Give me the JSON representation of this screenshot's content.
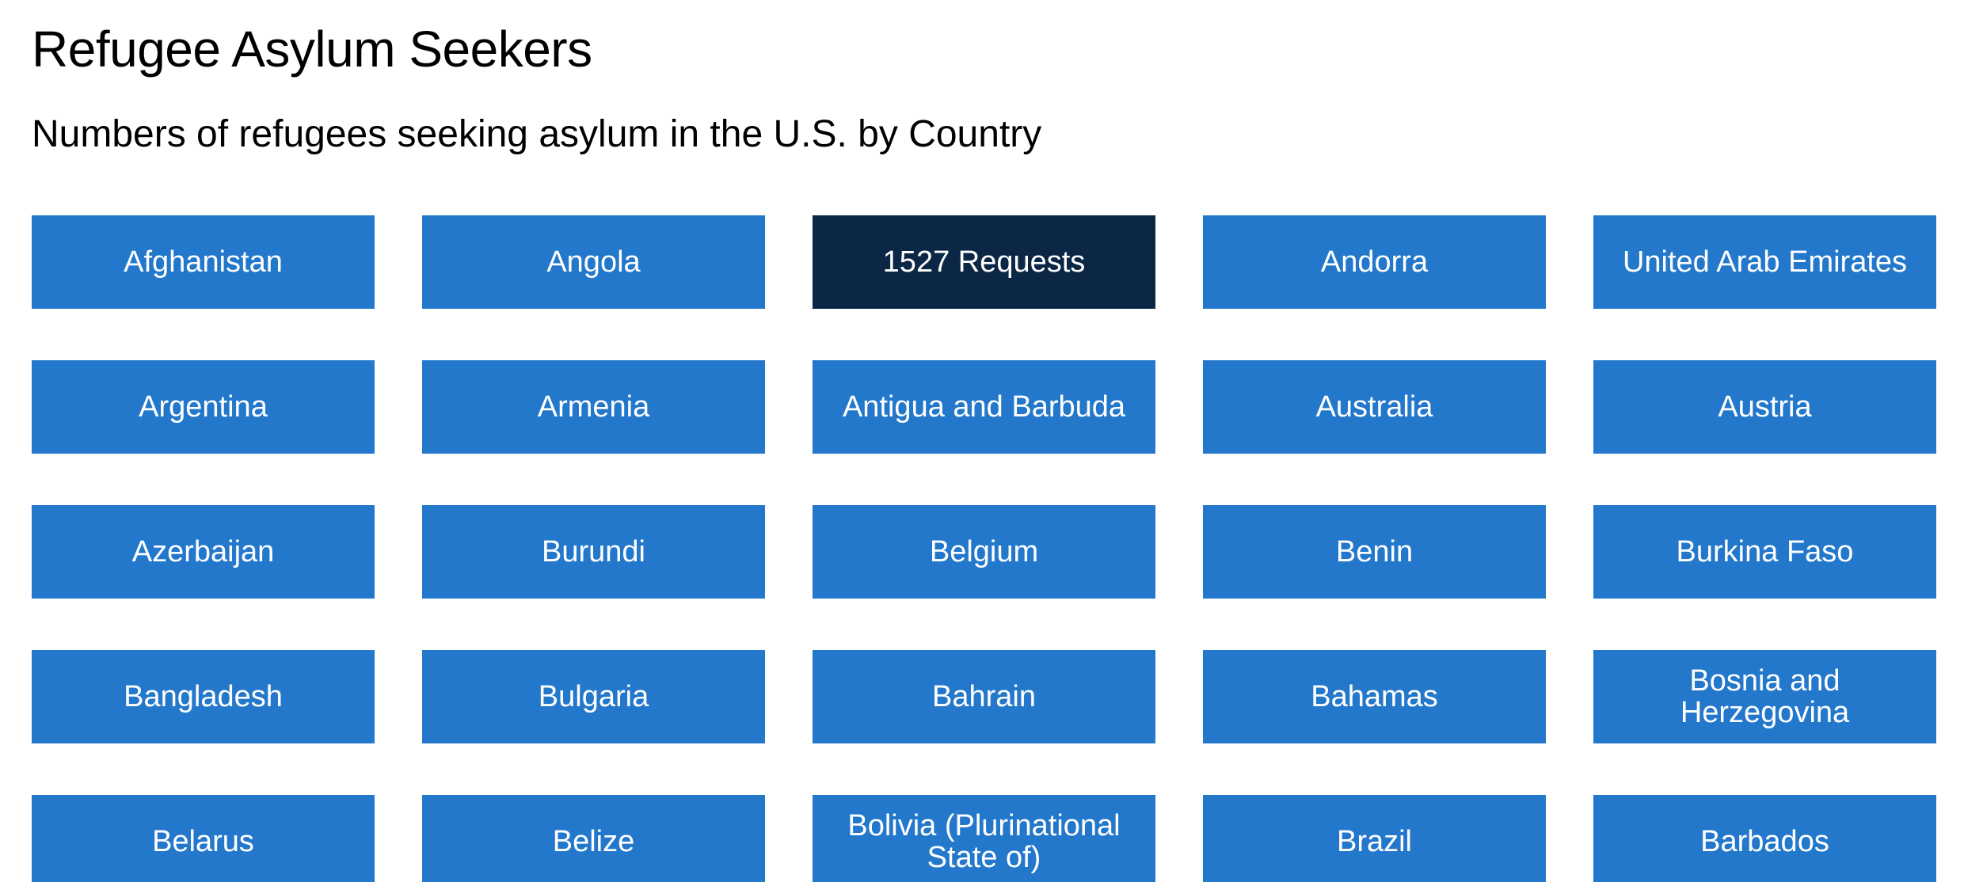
{
  "header": {
    "title": "Refugee Asylum Seekers",
    "subtitle": "Numbers of refugees seeking asylum in the U.S. by Country"
  },
  "colors": {
    "tile": "#2378cc",
    "tile_active": "#0c2746",
    "tile_text": "#ffffff"
  },
  "countries": [
    {
      "label": "Afghanistan",
      "active": false
    },
    {
      "label": "Angola",
      "active": false
    },
    {
      "label": "1527 Requests",
      "active": true
    },
    {
      "label": "Andorra",
      "active": false
    },
    {
      "label": "United Arab Emirates",
      "active": false
    },
    {
      "label": "Argentina",
      "active": false
    },
    {
      "label": "Armenia",
      "active": false
    },
    {
      "label": "Antigua and Barbuda",
      "active": false
    },
    {
      "label": "Australia",
      "active": false
    },
    {
      "label": "Austria",
      "active": false
    },
    {
      "label": "Azerbaijan",
      "active": false
    },
    {
      "label": "Burundi",
      "active": false
    },
    {
      "label": "Belgium",
      "active": false
    },
    {
      "label": "Benin",
      "active": false
    },
    {
      "label": "Burkina Faso",
      "active": false
    },
    {
      "label": "Bangladesh",
      "active": false
    },
    {
      "label": "Bulgaria",
      "active": false
    },
    {
      "label": "Bahrain",
      "active": false
    },
    {
      "label": "Bahamas",
      "active": false
    },
    {
      "label": "Bosnia and Herzegovina",
      "active": false
    },
    {
      "label": "Belarus",
      "active": false
    },
    {
      "label": "Belize",
      "active": false
    },
    {
      "label": "Bolivia (Plurinational State of)",
      "active": false
    },
    {
      "label": "Brazil",
      "active": false
    },
    {
      "label": "Barbados",
      "active": false
    }
  ]
}
